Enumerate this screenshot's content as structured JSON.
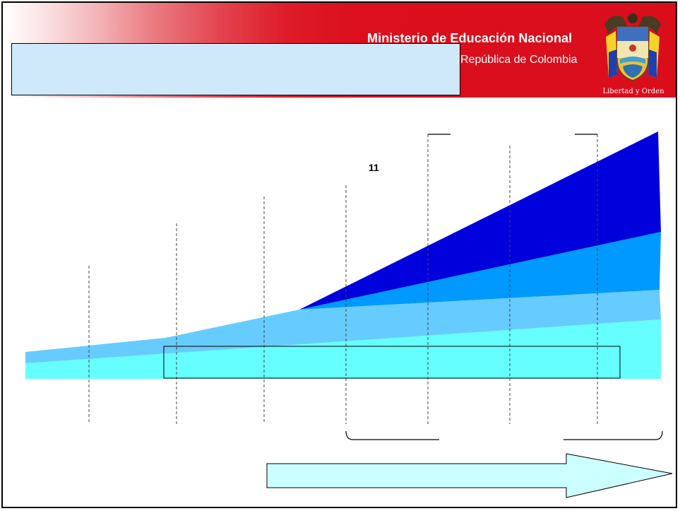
{
  "header": {
    "ministry_name": "Ministerio de Educación Nacional",
    "country_name": "República de Colombia",
    "motto": "Libertad y Orden",
    "logo_icon": "colombia-coat-of-arms-icon"
  },
  "title_box": {
    "text": ""
  },
  "diagram": {
    "level_label": "11",
    "colors": {
      "header_red": "#da0d1b",
      "band_cyan": "#66ffff",
      "band_light_blue": "#66ccff",
      "band_medium_blue": "#0099ff",
      "band_dark_blue": "#0000dd",
      "title_box": "#cfe9fb",
      "arrow_fill": "#ccffff"
    },
    "central_box_text": "",
    "arrow_text": ""
  }
}
